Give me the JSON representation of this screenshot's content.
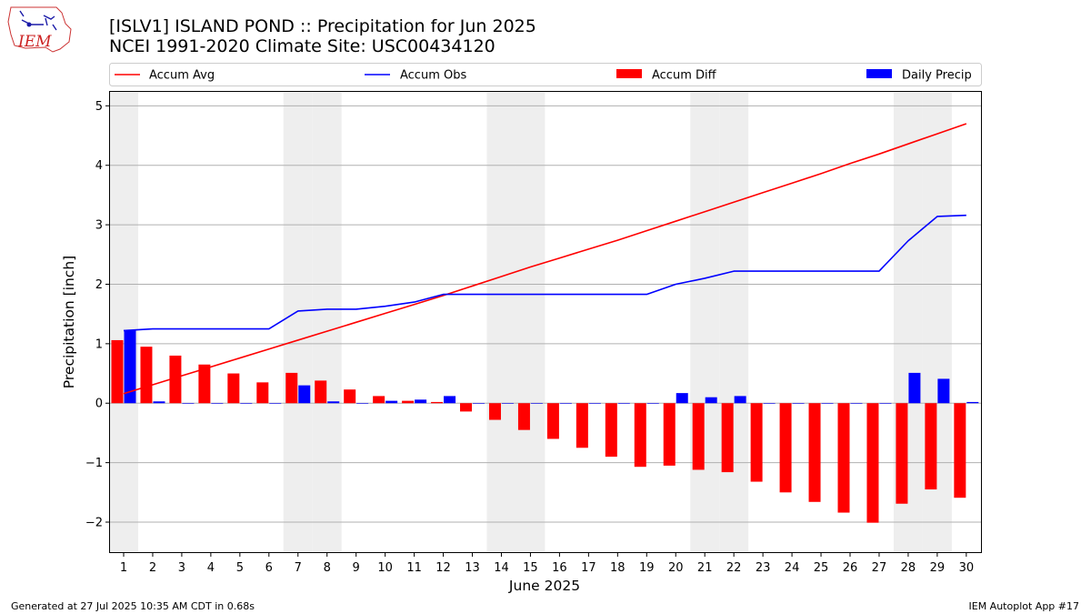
{
  "header": {
    "logo_text": "IEM",
    "title_line1": "[ISLV1] ISLAND POND :: Precipitation for Jun 2025",
    "title_line2": "NCEI 1991-2020 Climate Site: USC00434120"
  },
  "footer": {
    "generated": "Generated at 27 Jul 2025 10:35 AM CDT in 0.68s",
    "app": "IEM Autoplot App #17"
  },
  "colors": {
    "accum_avg": "#ff0000",
    "accum_obs": "#0000ff",
    "accum_diff": "#ff0000",
    "daily_precip": "#0000ff",
    "weekend_shade": "#eeeeee",
    "grid": "#b0b0b0"
  },
  "chart_data": {
    "type": "bar",
    "xlabel": "June 2025",
    "ylabel": "Precipitation [inch]",
    "ylim": [
      -2.52,
      5.25
    ],
    "yticks": [
      -2,
      -1,
      0,
      1,
      2,
      3,
      4,
      5
    ],
    "ytick_labels": [
      "−2",
      "−1",
      "0",
      "1",
      "2",
      "3",
      "4",
      "5"
    ],
    "grid": "horizontal",
    "legend_position": "top",
    "legend": [
      "Accum Avg",
      "Accum Obs",
      "Accum Diff",
      "Daily Precip"
    ],
    "shaded_days": [
      1,
      7,
      8,
      14,
      15,
      21,
      22,
      28,
      29
    ],
    "days": [
      1,
      2,
      3,
      4,
      5,
      6,
      7,
      8,
      9,
      10,
      11,
      12,
      13,
      14,
      15,
      16,
      17,
      18,
      19,
      20,
      21,
      22,
      23,
      24,
      25,
      26,
      27,
      28,
      29,
      30
    ],
    "day_labels": [
      "1",
      "2",
      "3",
      "4",
      "5",
      "6",
      "7",
      "8",
      "9",
      "10",
      "11",
      "12",
      "13",
      "14",
      "15",
      "16",
      "17",
      "18",
      "19",
      "20",
      "21",
      "22",
      "23",
      "24",
      "25",
      "26",
      "27",
      "28",
      "29",
      "30"
    ],
    "series": [
      {
        "name": "Accum Avg",
        "kind": "line",
        "values": [
          0.16,
          0.31,
          0.46,
          0.61,
          0.76,
          0.91,
          1.06,
          1.21,
          1.36,
          1.51,
          1.66,
          1.81,
          1.97,
          2.13,
          2.29,
          2.44,
          2.59,
          2.74,
          2.9,
          3.06,
          3.22,
          3.38,
          3.54,
          3.7,
          3.86,
          4.03,
          4.19,
          4.36,
          4.53,
          4.7
        ]
      },
      {
        "name": "Accum Obs",
        "kind": "line",
        "values": [
          1.22,
          1.25,
          1.25,
          1.25,
          1.25,
          1.25,
          1.55,
          1.58,
          1.58,
          1.63,
          1.7,
          1.83,
          1.83,
          1.83,
          1.83,
          1.83,
          1.83,
          1.83,
          1.83,
          2.0,
          2.1,
          2.22,
          2.22,
          2.22,
          2.22,
          2.22,
          2.22,
          2.73,
          3.14,
          3.16
        ]
      },
      {
        "name": "Accum Diff",
        "kind": "bar",
        "values": [
          1.06,
          0.95,
          0.8,
          0.65,
          0.5,
          0.35,
          0.51,
          0.38,
          0.23,
          0.12,
          0.04,
          0.02,
          -0.14,
          -0.28,
          -0.45,
          -0.6,
          -0.75,
          -0.9,
          -1.07,
          -1.05,
          -1.12,
          -1.16,
          -1.32,
          -1.5,
          -1.66,
          -1.84,
          -2.01,
          -1.69,
          -1.45,
          -1.59
        ]
      },
      {
        "name": "Daily Precip",
        "kind": "bar",
        "values": [
          1.22,
          0.03,
          0,
          0,
          0,
          0,
          0.3,
          0.03,
          0,
          0.04,
          0.06,
          0.12,
          0,
          0,
          0,
          0,
          0,
          0,
          0,
          0.17,
          0.1,
          0.12,
          0,
          0,
          0,
          0,
          0,
          0.51,
          0.41,
          0.02
        ]
      }
    ]
  }
}
